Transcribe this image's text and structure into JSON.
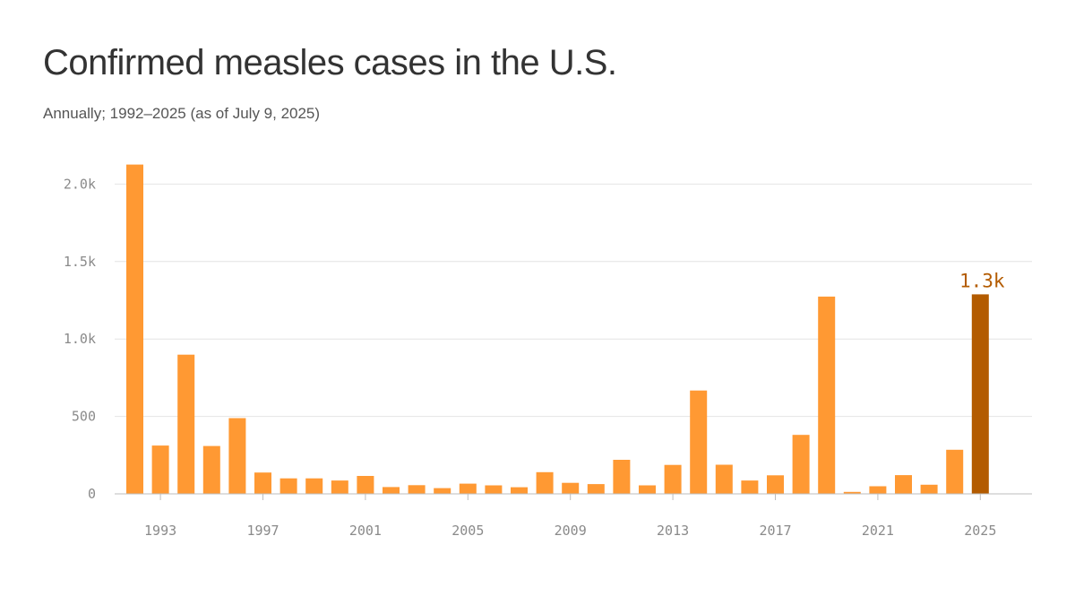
{
  "title": "Confirmed measles cases in the U.S.",
  "subtitle": "Annually; 1992–2025 (as of July 9, 2025)",
  "colors": {
    "bar": "#ff9933",
    "highlight": "#b35b00",
    "grid": "#e4e4e4",
    "baseline": "#bdbdbd",
    "tick": "#8a8a8a"
  },
  "chart_data": {
    "type": "bar",
    "title": "Confirmed measles cases in the U.S.",
    "subtitle": "Annually; 1992–2025 (as of July 9, 2025)",
    "xlabel": "",
    "ylabel": "",
    "ylim": [
      0,
      2200
    ],
    "y_ticks": [
      0,
      500,
      1000,
      1500,
      2000
    ],
    "y_tick_labels": [
      "0",
      "500",
      "1.0k",
      "1.5k",
      "2.0k"
    ],
    "x_tick_labels": [
      "1993",
      "1997",
      "2001",
      "2005",
      "2009",
      "2013",
      "2017",
      "2021",
      "2025"
    ],
    "grid": true,
    "categories": [
      "1992",
      "1993",
      "1994",
      "1995",
      "1996",
      "1997",
      "1998",
      "1999",
      "2000",
      "2001",
      "2002",
      "2003",
      "2004",
      "2005",
      "2006",
      "2007",
      "2008",
      "2009",
      "2010",
      "2011",
      "2012",
      "2013",
      "2014",
      "2015",
      "2016",
      "2017",
      "2018",
      "2019",
      "2020",
      "2021",
      "2022",
      "2023",
      "2024",
      "2025"
    ],
    "values": [
      2126,
      312,
      899,
      309,
      489,
      138,
      100,
      100,
      86,
      116,
      44,
      56,
      37,
      66,
      55,
      43,
      140,
      71,
      63,
      220,
      55,
      187,
      667,
      188,
      86,
      120,
      381,
      1274,
      13,
      49,
      121,
      59,
      285,
      1288
    ],
    "highlight_index": 33,
    "highlight_label": "1.3k"
  }
}
